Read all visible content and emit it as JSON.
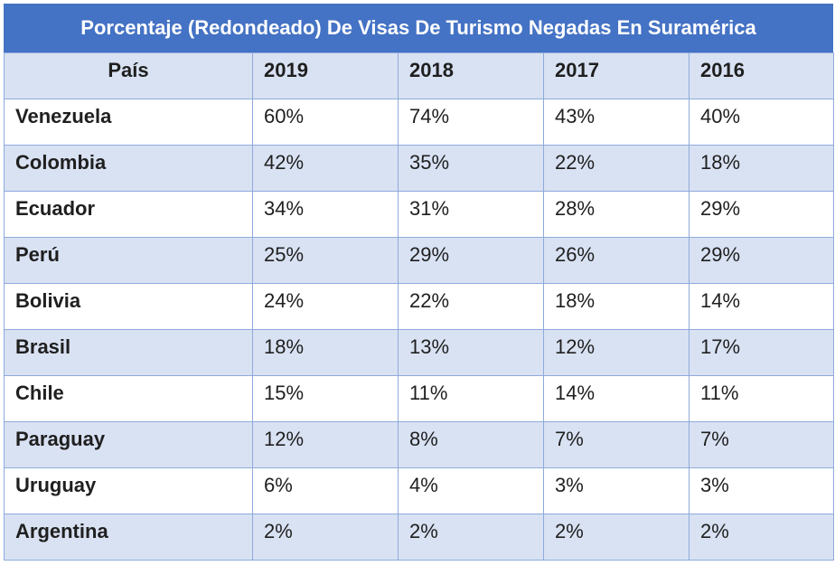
{
  "table": {
    "title": "Porcentaje (Redondeado) De Visas De Turismo Negadas En Suramérica",
    "headers": [
      "País",
      "2019",
      "2018",
      "2017",
      "2016"
    ],
    "rows": [
      [
        "Venezuela",
        "60%",
        "74%",
        "43%",
        "40%"
      ],
      [
        "Colombia",
        "42%",
        "35%",
        "22%",
        "18%"
      ],
      [
        "Ecuador",
        "34%",
        "31%",
        "28%",
        "29%"
      ],
      [
        "Perú",
        "25%",
        "29%",
        "26%",
        "29%"
      ],
      [
        "Bolivia",
        "24%",
        "22%",
        "18%",
        "14%"
      ],
      [
        "Brasil",
        "18%",
        "13%",
        "12%",
        "17%"
      ],
      [
        "Chile",
        "15%",
        "11%",
        "14%",
        "11%"
      ],
      [
        "Paraguay",
        "12%",
        "8%",
        "7%",
        "7%"
      ],
      [
        "Uruguay",
        "6%",
        "4%",
        "3%",
        "3%"
      ],
      [
        "Argentina",
        "2%",
        "2%",
        "2%",
        "2%"
      ]
    ]
  },
  "colors": {
    "title_background": "#4472c4",
    "band_background": "#d9e2f3",
    "border": "#8eaadb"
  }
}
